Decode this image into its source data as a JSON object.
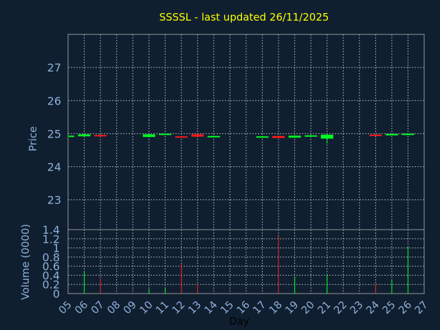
{
  "title": "SSSSL - last updated 26/11/2025",
  "colors": {
    "background": "#0f1f30",
    "frame": "#9a9a9a",
    "grid": "#c8c8c8",
    "title": "#ffff00",
    "label": "#8fb0d8",
    "day_label": "#000000",
    "up": "#00ff22",
    "down": "#ff1a1a"
  },
  "chart_data": [
    {
      "type": "candlestick",
      "ylabel": "Price",
      "xlim": [
        5,
        27
      ],
      "ylim": [
        22.1,
        28
      ],
      "yticks": [
        23,
        24,
        25,
        26,
        27
      ],
      "grid": true,
      "candles": [
        {
          "day": 5.0,
          "open": 24.9,
          "close": 24.94,
          "high": 24.95,
          "low": 24.9
        },
        {
          "day": 6.0,
          "open": 24.92,
          "close": 24.98,
          "high": 24.99,
          "low": 24.91
        },
        {
          "day": 7.0,
          "open": 24.96,
          "close": 24.92,
          "high": 24.97,
          "low": 24.91
        },
        {
          "day": 10.0,
          "open": 24.9,
          "close": 24.98,
          "high": 24.99,
          "low": 24.88
        },
        {
          "day": 11.0,
          "open": 24.98,
          "close": 25.0,
          "high": 25.01,
          "low": 24.97
        },
        {
          "day": 12.0,
          "open": 24.92,
          "close": 24.88,
          "high": 24.93,
          "low": 24.87
        },
        {
          "day": 13.0,
          "open": 24.98,
          "close": 24.91,
          "high": 24.99,
          "low": 24.9
        },
        {
          "day": 14.0,
          "open": 24.89,
          "close": 24.93,
          "high": 24.94,
          "low": 24.88
        },
        {
          "day": 17.0,
          "open": 24.89,
          "close": 24.92,
          "high": 24.93,
          "low": 24.88
        },
        {
          "day": 18.0,
          "open": 24.93,
          "close": 24.87,
          "high": 24.94,
          "low": 24.86
        },
        {
          "day": 19.0,
          "open": 24.88,
          "close": 24.94,
          "high": 24.95,
          "low": 24.87
        },
        {
          "day": 20.0,
          "open": 24.92,
          "close": 24.95,
          "high": 24.96,
          "low": 24.91
        },
        {
          "day": 21.0,
          "open": 24.85,
          "close": 24.97,
          "high": 24.98,
          "low": 24.7
        },
        {
          "day": 24.0,
          "open": 24.97,
          "close": 24.93,
          "high": 24.98,
          "low": 24.92
        },
        {
          "day": 25.0,
          "open": 24.96,
          "close": 24.99,
          "high": 25.0,
          "low": 24.95
        },
        {
          "day": 26.0,
          "open": 24.96,
          "close": 25.0,
          "high": 25.01,
          "low": 24.95
        }
      ]
    },
    {
      "type": "bar",
      "ylabel": "Volume (0000)",
      "xlabel": "Day",
      "xlim": [
        5,
        27
      ],
      "ylim": [
        0,
        1.4
      ],
      "yticks": [
        0,
        0.2,
        0.4,
        0.6,
        0.8,
        1,
        1.2,
        1.4
      ],
      "xticks": [
        "05",
        "06",
        "07",
        "08",
        "09",
        "10",
        "11",
        "12",
        "13",
        "14",
        "15",
        "16",
        "17",
        "18",
        "19",
        "20",
        "21",
        "22",
        "23",
        "24",
        "25",
        "26",
        "27"
      ],
      "grid": true,
      "bars": [
        {
          "day": 6.0,
          "value": 0.5,
          "dir": "up"
        },
        {
          "day": 7.0,
          "value": 0.33,
          "dir": "down"
        },
        {
          "day": 10.0,
          "value": 0.1,
          "dir": "up"
        },
        {
          "day": 11.0,
          "value": 0.13,
          "dir": "up"
        },
        {
          "day": 12.0,
          "value": 0.66,
          "dir": "down"
        },
        {
          "day": 13.0,
          "value": 0.2,
          "dir": "down"
        },
        {
          "day": 18.0,
          "value": 1.25,
          "dir": "down"
        },
        {
          "day": 19.0,
          "value": 0.37,
          "dir": "up"
        },
        {
          "day": 21.0,
          "value": 0.42,
          "dir": "up"
        },
        {
          "day": 24.0,
          "value": 0.2,
          "dir": "down"
        },
        {
          "day": 25.0,
          "value": 0.3,
          "dir": "up"
        },
        {
          "day": 26.0,
          "value": 1.03,
          "dir": "up"
        }
      ]
    }
  ]
}
